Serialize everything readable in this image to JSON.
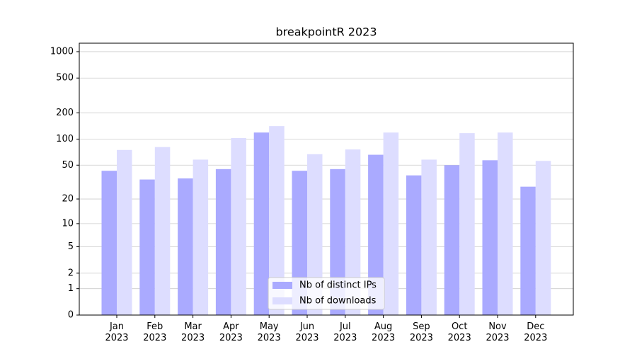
{
  "chart_data": {
    "type": "bar",
    "title": "breakpointR 2023",
    "categories": [
      "Jan 2023",
      "Feb 2023",
      "Mar 2023",
      "Apr 2023",
      "May 2023",
      "Jun 2023",
      "Jul 2023",
      "Aug 2023",
      "Sep 2023",
      "Oct 2023",
      "Nov 2023",
      "Dec 2023"
    ],
    "series": [
      {
        "name": "Nb of distinct IPs",
        "color": "#aaaaff",
        "values": [
          43,
          34,
          35,
          45,
          119,
          43,
          45,
          66,
          38,
          50,
          57,
          28
        ]
      },
      {
        "name": "Nb of downloads",
        "color": "#ddddff",
        "values": [
          75,
          81,
          58,
          103,
          141,
          67,
          76,
          119,
          58,
          117,
          119,
          56
        ]
      }
    ],
    "scale": "log1p",
    "ylim": [
      0,
      1249
    ],
    "yticks": [
      0,
      1,
      2,
      5,
      10,
      20,
      50,
      100,
      200,
      500,
      1000
    ],
    "grid": true,
    "legend": "lower center"
  }
}
